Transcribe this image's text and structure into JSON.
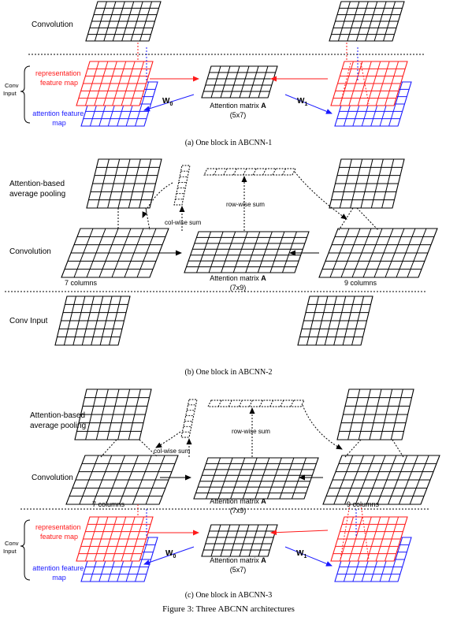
{
  "caption": "Figure 3: Three ABCNN architectures",
  "colors": {
    "red": "#ff1a1a",
    "blue": "#1a1aff",
    "black": "#000000"
  },
  "panel_a": {
    "caption": "(a)  One block in ABCNN-1",
    "convolution": "Convolution",
    "conv_input": "Conv Input",
    "representation": "representation feature map",
    "attention_fm": "attention  feature map",
    "w0": "W0",
    "w1": "W1",
    "matrix_label": "Attention matrix A",
    "matrix_dims": "(5x7)"
  },
  "panel_b": {
    "caption": "(b)  One block in ABCNN-2",
    "pooling": "Attention-based average pooling",
    "convolution": "Convolution",
    "conv_input": "Conv Input",
    "col_sum": "col-wise sum",
    "row_sum": "row-wise sum",
    "left_cols": "7 columns",
    "right_cols": "9 columns",
    "matrix_label": "Attention matrix A",
    "matrix_dims": "(7x9)"
  },
  "panel_c": {
    "caption": "(c)  One block in ABCNN-3",
    "pooling": "Attention-based average pooling",
    "convolution": "Convolution",
    "conv_input": "Conv Input",
    "col_sum": "col-wise sum",
    "row_sum": "row-wise sum",
    "left_cols": "7 columns",
    "right_cols": "9 columns",
    "matrix_label_top": "Attention matrix A",
    "matrix_dims_top": "(7x9)",
    "representation": "representation feature map",
    "attention_fm": "attention  feature map",
    "w0": "W0",
    "w1": "W1",
    "matrix_label_bottom": "Attention matrix A",
    "matrix_dims_bottom": "(5x7)"
  }
}
